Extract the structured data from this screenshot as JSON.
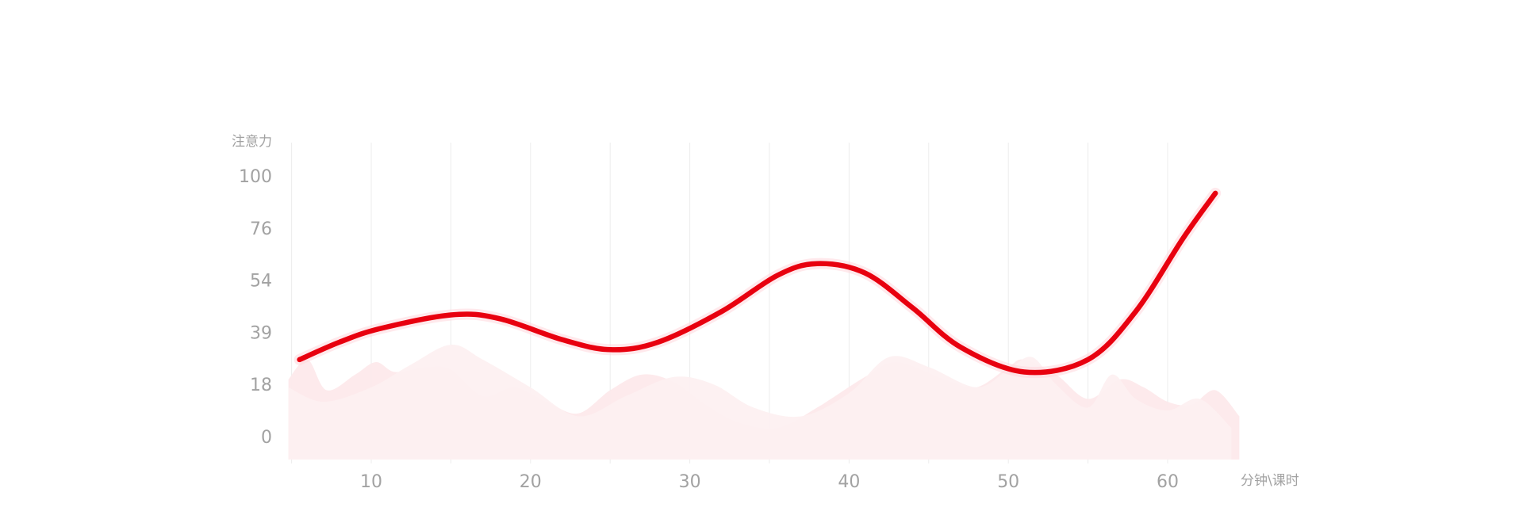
{
  "chart_data": {
    "type": "line",
    "ylabel": "注意力",
    "xlabel": "分钟\\课时",
    "x_ticks": [
      10,
      20,
      30,
      40,
      50,
      60
    ],
    "y_ticks": [
      100,
      76,
      54,
      39,
      18,
      0
    ],
    "grid": {
      "vertical": true,
      "horizontal": false
    },
    "legend": "none",
    "series": [
      {
        "color": "#e8000f",
        "points": [
          [
            5.5,
            28
          ],
          [
            8,
            35
          ],
          [
            10.5,
            40
          ],
          [
            15,
            44
          ],
          [
            18,
            43
          ],
          [
            22,
            36
          ],
          [
            25,
            32
          ],
          [
            28,
            35
          ],
          [
            32,
            45
          ],
          [
            35.5,
            56
          ],
          [
            38,
            61
          ],
          [
            41,
            57
          ],
          [
            44,
            46
          ],
          [
            47,
            33
          ],
          [
            51,
            23
          ],
          [
            55,
            28
          ],
          [
            58,
            45
          ],
          [
            61,
            72
          ],
          [
            63,
            92
          ]
        ]
      }
    ],
    "background_waves": [
      {
        "color": "#fde9eb",
        "points": [
          [
            4.8,
            20
          ],
          [
            6,
            28
          ],
          [
            7.2,
            16
          ],
          [
            9,
            22
          ],
          [
            10.3,
            27
          ],
          [
            11.5,
            23
          ],
          [
            13.5,
            25
          ],
          [
            15,
            24
          ],
          [
            17,
            14
          ],
          [
            19,
            17
          ],
          [
            21,
            12
          ],
          [
            23,
            8
          ],
          [
            25,
            16
          ],
          [
            27,
            22
          ],
          [
            29,
            19
          ],
          [
            31,
            11
          ],
          [
            33,
            5
          ],
          [
            35.5,
            3
          ],
          [
            38,
            10
          ],
          [
            41,
            21
          ],
          [
            43,
            27
          ],
          [
            46,
            20
          ],
          [
            48,
            17
          ],
          [
            50,
            25
          ],
          [
            51,
            28
          ],
          [
            53,
            22
          ],
          [
            55,
            13
          ],
          [
            57,
            20
          ],
          [
            58.5,
            17
          ],
          [
            60,
            12
          ],
          [
            61.5,
            11
          ],
          [
            63,
            16
          ],
          [
            64.5,
            7
          ]
        ]
      },
      {
        "color": "#fdf0f1",
        "points": [
          [
            4.8,
            17
          ],
          [
            7,
            12
          ],
          [
            10,
            17
          ],
          [
            12.5,
            26
          ],
          [
            15,
            34
          ],
          [
            17,
            28
          ],
          [
            20,
            17
          ],
          [
            23,
            7
          ],
          [
            26,
            14
          ],
          [
            29,
            21
          ],
          [
            31.5,
            18
          ],
          [
            34,
            10
          ],
          [
            37,
            7
          ],
          [
            40,
            15
          ],
          [
            42.5,
            29
          ],
          [
            45,
            25
          ],
          [
            48,
            17
          ],
          [
            50,
            24
          ],
          [
            51.5,
            29
          ],
          [
            53,
            18
          ],
          [
            55,
            10
          ],
          [
            56.5,
            22
          ],
          [
            58,
            13
          ],
          [
            60,
            9
          ],
          [
            62,
            13
          ],
          [
            64,
            3
          ]
        ]
      }
    ]
  }
}
